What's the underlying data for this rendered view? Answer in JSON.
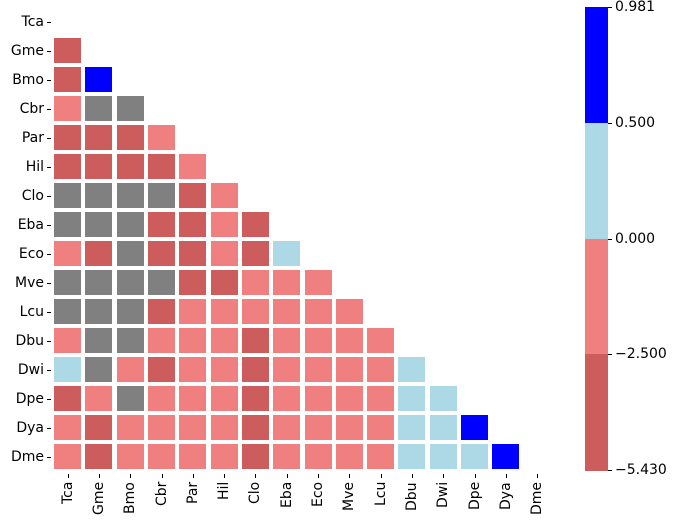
{
  "chart_data": {
    "type": "heatmap",
    "title": "",
    "subtitle": "",
    "xlabel": "",
    "ylabel": "",
    "grid": false,
    "layout": "lower-triangle (diagonal and upper triangle masked)",
    "labels": [
      "Tca",
      "Gme",
      "Bmo",
      "Cbr",
      "Par",
      "Hil",
      "Clo",
      "Eba",
      "Eco",
      "Mve",
      "Lcu",
      "Dbu",
      "Dwi",
      "Dpe",
      "Dya",
      "Dme"
    ],
    "categories_encoding": {
      "D": {
        "label": "-5.430 to -2.500",
        "color": "#cd5c5c"
      },
      "L": {
        "label": "-2.500 to 0.000",
        "color": "#f08080"
      },
      "LB": {
        "label": "0.000 to 0.500",
        "color": "#add8e6"
      },
      "B": {
        "label": "0.500 to 0.981",
        "color": "#0000ff"
      },
      "G": {
        "label": "missing / not significant",
        "color": "#808080"
      }
    },
    "matrix": [
      [],
      [
        "D"
      ],
      [
        "D",
        "B"
      ],
      [
        "L",
        "G",
        "G"
      ],
      [
        "D",
        "D",
        "D",
        "L"
      ],
      [
        "D",
        "D",
        "D",
        "D",
        "L"
      ],
      [
        "G",
        "G",
        "G",
        "G",
        "D",
        "L"
      ],
      [
        "G",
        "G",
        "G",
        "D",
        "D",
        "L",
        "D"
      ],
      [
        "L",
        "D",
        "G",
        "D",
        "D",
        "L",
        "D",
        "LB"
      ],
      [
        "G",
        "G",
        "G",
        "G",
        "D",
        "D",
        "L",
        "L",
        "L"
      ],
      [
        "G",
        "G",
        "G",
        "D",
        "L",
        "L",
        "L",
        "L",
        "L",
        "L"
      ],
      [
        "L",
        "G",
        "G",
        "L",
        "L",
        "L",
        "D",
        "L",
        "L",
        "L",
        "L"
      ],
      [
        "LB",
        "G",
        "L",
        "D",
        "L",
        "L",
        "D",
        "L",
        "L",
        "L",
        "L",
        "LB"
      ],
      [
        "D",
        "L",
        "G",
        "L",
        "L",
        "L",
        "D",
        "L",
        "L",
        "L",
        "L",
        "LB",
        "LB"
      ],
      [
        "L",
        "D",
        "L",
        "L",
        "L",
        "L",
        "D",
        "L",
        "L",
        "L",
        "L",
        "LB",
        "LB",
        "B"
      ],
      [
        "L",
        "D",
        "L",
        "L",
        "L",
        "L",
        "D",
        "L",
        "L",
        "L",
        "L",
        "LB",
        "LB",
        "LB",
        "B"
      ]
    ],
    "colorbar": {
      "ticks": [
        "0.981",
        "0.500",
        "0.000",
        "−2.500",
        "−5.430"
      ],
      "tick_values": [
        0.981,
        0.5,
        0.0,
        -2.5,
        -5.43
      ],
      "segments": [
        {
          "from": 0.5,
          "to": 0.981,
          "color": "#0000ff"
        },
        {
          "from": 0.0,
          "to": 0.5,
          "color": "#add8e6"
        },
        {
          "from": -2.5,
          "to": 0.0,
          "color": "#f08080"
        },
        {
          "from": -5.43,
          "to": -2.5,
          "color": "#cd5c5c"
        }
      ],
      "position": "right"
    },
    "legend": "none"
  }
}
